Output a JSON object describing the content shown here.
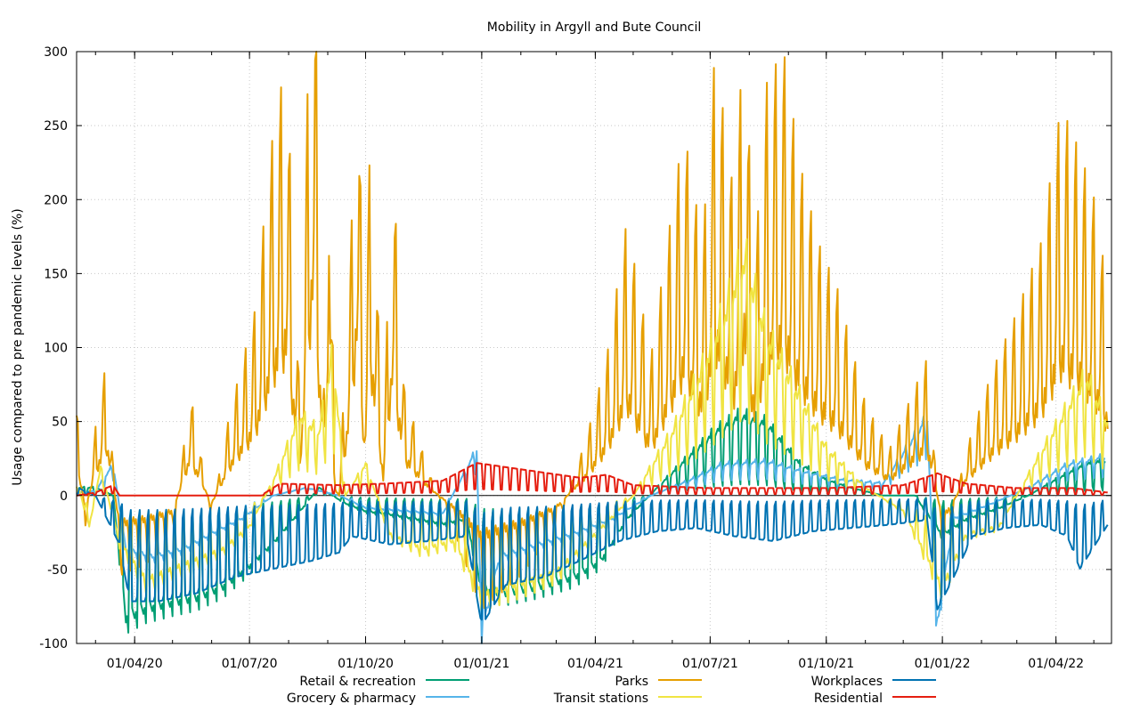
{
  "chart_data": {
    "type": "line",
    "title": "Mobility in Argyll and Bute Council",
    "xlabel": "",
    "ylabel": "Usage compared to pre pandemic levels (%)",
    "ylim": [
      -100,
      300
    ],
    "y_ticks": [
      "300",
      "250",
      "200",
      "150",
      "100",
      "50",
      "0",
      "-50",
      "-100"
    ],
    "x_range": [
      "2020-02-15",
      "2022-05-15"
    ],
    "x_ticks": [
      {
        "date": "2020-04-01",
        "label": "01/04/20"
      },
      {
        "date": "2020-07-01",
        "label": "01/07/20"
      },
      {
        "date": "2020-10-01",
        "label": "01/10/20"
      },
      {
        "date": "2021-01-01",
        "label": "01/01/21"
      },
      {
        "date": "2021-04-01",
        "label": "01/04/21"
      },
      {
        "date": "2021-07-01",
        "label": "01/07/21"
      },
      {
        "date": "2021-10-01",
        "label": "01/10/21"
      },
      {
        "date": "2022-01-01",
        "label": "01/01/22"
      },
      {
        "date": "2022-04-01",
        "label": "01/04/22"
      }
    ],
    "grid": true,
    "legend_position": "bottom",
    "series": [
      {
        "name": "Retail & recreation",
        "color": "#009e73",
        "points": [
          [
            "2020-02-15",
            5
          ],
          [
            "2020-03-01",
            5
          ],
          [
            "2020-03-15",
            0
          ],
          [
            "2020-03-25",
            -78
          ],
          [
            "2020-04-10",
            -72
          ],
          [
            "2020-05-01",
            -68
          ],
          [
            "2020-05-20",
            -65
          ],
          [
            "2020-06-10",
            -58
          ],
          [
            "2020-07-01",
            -45
          ],
          [
            "2020-07-20",
            -30
          ],
          [
            "2020-08-10",
            -10
          ],
          [
            "2020-08-25",
            5
          ],
          [
            "2020-09-15",
            -5
          ],
          [
            "2020-10-01",
            -10
          ],
          [
            "2020-10-20",
            -12
          ],
          [
            "2020-11-10",
            -15
          ],
          [
            "2020-12-01",
            -18
          ],
          [
            "2020-12-20",
            -15
          ],
          [
            "2021-01-01",
            -60
          ],
          [
            "2021-01-20",
            -62
          ],
          [
            "2021-02-15",
            -58
          ],
          [
            "2021-03-15",
            -52
          ],
          [
            "2021-04-05",
            -42
          ],
          [
            "2021-04-26",
            -15
          ],
          [
            "2021-05-20",
            5
          ],
          [
            "2021-06-15",
            25
          ],
          [
            "2021-07-05",
            40
          ],
          [
            "2021-07-25",
            50
          ],
          [
            "2021-08-15",
            45
          ],
          [
            "2021-09-10",
            20
          ],
          [
            "2021-10-01",
            10
          ],
          [
            "2021-10-20",
            5
          ],
          [
            "2021-11-15",
            0
          ],
          [
            "2021-12-10",
            0
          ],
          [
            "2022-01-01",
            -25
          ],
          [
            "2022-01-20",
            -15
          ],
          [
            "2022-02-15",
            -8
          ],
          [
            "2022-03-10",
            0
          ],
          [
            "2022-04-01",
            10
          ],
          [
            "2022-04-25",
            20
          ],
          [
            "2022-05-10",
            22
          ]
        ]
      },
      {
        "name": "Grocery & pharmacy",
        "color": "#56b4e9",
        "points": [
          [
            "2020-02-15",
            2
          ],
          [
            "2020-03-01",
            3
          ],
          [
            "2020-03-15",
            20
          ],
          [
            "2020-03-25",
            -35
          ],
          [
            "2020-04-15",
            -40
          ],
          [
            "2020-05-10",
            -35
          ],
          [
            "2020-06-01",
            -25
          ],
          [
            "2020-06-25",
            -15
          ],
          [
            "2020-07-20",
            0
          ],
          [
            "2020-08-15",
            5
          ],
          [
            "2020-09-10",
            0
          ],
          [
            "2020-10-01",
            -8
          ],
          [
            "2020-11-01",
            -10
          ],
          [
            "2020-12-01",
            -12
          ],
          [
            "2020-12-28",
            30
          ],
          [
            "2021-01-01",
            -90
          ],
          [
            "2021-01-15",
            -40
          ],
          [
            "2021-02-15",
            -32
          ],
          [
            "2021-03-15",
            -25
          ],
          [
            "2021-04-15",
            -15
          ],
          [
            "2021-05-15",
            0
          ],
          [
            "2021-06-15",
            10
          ],
          [
            "2021-07-10",
            20
          ],
          [
            "2021-08-15",
            22
          ],
          [
            "2021-09-15",
            15
          ],
          [
            "2021-10-15",
            10
          ],
          [
            "2021-11-15",
            8
          ],
          [
            "2021-12-20",
            50
          ],
          [
            "2021-12-27",
            -88
          ],
          [
            "2022-01-10",
            -15
          ],
          [
            "2022-02-10",
            -5
          ],
          [
            "2022-03-10",
            5
          ],
          [
            "2022-04-10",
            20
          ],
          [
            "2022-05-10",
            25
          ]
        ]
      },
      {
        "name": "Parks",
        "color": "#e69f00",
        "points": [
          [
            "2020-02-15",
            40
          ],
          [
            "2020-02-22",
            -15
          ],
          [
            "2020-03-01",
            30
          ],
          [
            "2020-03-10",
            60
          ],
          [
            "2020-03-20",
            -35
          ],
          [
            "2020-04-10",
            -30
          ],
          [
            "2020-05-01",
            -20
          ],
          [
            "2020-05-15",
            45
          ],
          [
            "2020-06-01",
            -10
          ],
          [
            "2020-06-15",
            35
          ],
          [
            "2020-07-05",
            80
          ],
          [
            "2020-07-20",
            160
          ],
          [
            "2020-07-30",
            190
          ],
          [
            "2020-08-10",
            40
          ],
          [
            "2020-08-20",
            265
          ],
          [
            "2020-08-30",
            30
          ],
          [
            "2020-09-02",
            270
          ],
          [
            "2020-09-06",
            10
          ],
          [
            "2020-09-10",
            0
          ],
          [
            "2020-09-20",
            120
          ],
          [
            "2020-09-24",
            210
          ],
          [
            "2020-09-30",
            60
          ],
          [
            "2020-10-05",
            165
          ],
          [
            "2020-10-15",
            20
          ],
          [
            "2020-10-22",
            150
          ],
          [
            "2020-11-01",
            45
          ],
          [
            "2020-11-20",
            10
          ],
          [
            "2020-12-10",
            -15
          ],
          [
            "2021-01-01",
            -50
          ],
          [
            "2021-02-01",
            -35
          ],
          [
            "2021-03-01",
            -15
          ],
          [
            "2021-03-25",
            25
          ],
          [
            "2021-04-10",
            60
          ],
          [
            "2021-04-26",
            120
          ],
          [
            "2021-05-15",
            60
          ],
          [
            "2021-06-10",
            160
          ],
          [
            "2021-06-25",
            110
          ],
          [
            "2021-07-05",
            195
          ],
          [
            "2021-07-20",
            130
          ],
          [
            "2021-07-28",
            205
          ],
          [
            "2021-08-05",
            100
          ],
          [
            "2021-08-15",
            180
          ],
          [
            "2021-08-28",
            195
          ],
          [
            "2021-09-10",
            145
          ],
          [
            "2021-09-25",
            110
          ],
          [
            "2021-10-10",
            90
          ],
          [
            "2021-11-01",
            40
          ],
          [
            "2021-11-20",
            20
          ],
          [
            "2021-12-20",
            60
          ],
          [
            "2022-01-01",
            -30
          ],
          [
            "2022-01-20",
            20
          ],
          [
            "2022-02-10",
            55
          ],
          [
            "2022-03-01",
            80
          ],
          [
            "2022-03-20",
            110
          ],
          [
            "2022-04-05",
            170
          ],
          [
            "2022-04-20",
            150
          ],
          [
            "2022-05-01",
            130
          ],
          [
            "2022-05-12",
            90
          ]
        ]
      },
      {
        "name": "Transit stations",
        "color": "#f0e442",
        "points": [
          [
            "2020-02-15",
            10
          ],
          [
            "2020-02-25",
            -20
          ],
          [
            "2020-03-05",
            18
          ],
          [
            "2020-03-20",
            -30
          ],
          [
            "2020-04-10",
            -55
          ],
          [
            "2020-05-10",
            -45
          ],
          [
            "2020-06-10",
            -35
          ],
          [
            "2020-07-01",
            -20
          ],
          [
            "2020-07-20",
            10
          ],
          [
            "2020-08-10",
            50
          ],
          [
            "2020-08-25",
            40
          ],
          [
            "2020-09-05",
            90
          ],
          [
            "2020-09-15",
            0
          ],
          [
            "2020-10-01",
            20
          ],
          [
            "2020-10-20",
            -25
          ],
          [
            "2020-11-15",
            -35
          ],
          [
            "2020-12-10",
            -30
          ],
          [
            "2021-01-01",
            -65
          ],
          [
            "2021-02-01",
            -58
          ],
          [
            "2021-03-01",
            -50
          ],
          [
            "2021-04-01",
            -25
          ],
          [
            "2021-05-01",
            0
          ],
          [
            "2021-06-01",
            40
          ],
          [
            "2021-06-25",
            80
          ],
          [
            "2021-07-15",
            120
          ],
          [
            "2021-07-28",
            150
          ],
          [
            "2021-08-15",
            100
          ],
          [
            "2021-09-05",
            70
          ],
          [
            "2021-10-01",
            30
          ],
          [
            "2021-11-01",
            5
          ],
          [
            "2021-12-01",
            -10
          ],
          [
            "2022-01-01",
            -60
          ],
          [
            "2022-01-20",
            -25
          ],
          [
            "2022-02-15",
            -20
          ],
          [
            "2022-03-15",
            20
          ],
          [
            "2022-04-10",
            55
          ],
          [
            "2022-04-25",
            75
          ],
          [
            "2022-05-12",
            45
          ]
        ]
      },
      {
        "name": "Workplaces",
        "color": "#0072b2",
        "points": [
          [
            "2020-02-15",
            5
          ],
          [
            "2020-03-01",
            0
          ],
          [
            "2020-03-20",
            -30
          ],
          [
            "2020-03-28",
            -65
          ],
          [
            "2020-04-20",
            -65
          ],
          [
            "2020-05-20",
            -60
          ],
          [
            "2020-06-20",
            -50
          ],
          [
            "2020-07-20",
            -45
          ],
          [
            "2020-08-20",
            -40
          ],
          [
            "2020-09-10",
            -35
          ],
          [
            "2020-09-20",
            -25
          ],
          [
            "2020-10-20",
            -30
          ],
          [
            "2020-11-20",
            -28
          ],
          [
            "2020-12-20",
            -25
          ],
          [
            "2021-01-01",
            -80
          ],
          [
            "2021-01-20",
            -55
          ],
          [
            "2021-02-20",
            -50
          ],
          [
            "2021-03-20",
            -40
          ],
          [
            "2021-04-20",
            -28
          ],
          [
            "2021-05-20",
            -22
          ],
          [
            "2021-06-20",
            -20
          ],
          [
            "2021-07-20",
            -25
          ],
          [
            "2021-08-20",
            -28
          ],
          [
            "2021-09-20",
            -22
          ],
          [
            "2021-10-20",
            -20
          ],
          [
            "2021-11-20",
            -18
          ],
          [
            "2021-12-20",
            -15
          ],
          [
            "2021-12-28",
            -70
          ],
          [
            "2022-01-10",
            -50
          ],
          [
            "2022-01-25",
            -25
          ],
          [
            "2022-02-20",
            -20
          ],
          [
            "2022-03-20",
            -18
          ],
          [
            "2022-04-10",
            -25
          ],
          [
            "2022-04-20",
            -45
          ],
          [
            "2022-05-12",
            -18
          ]
        ]
      },
      {
        "name": "Residential",
        "color": "#e51e10",
        "points": [
          [
            "2020-02-15",
            0
          ],
          [
            "2020-03-01",
            2
          ],
          [
            "2020-03-15",
            7
          ],
          [
            "2020-03-20",
            0
          ],
          [
            "2020-07-10",
            0
          ],
          [
            "2020-07-25",
            8
          ],
          [
            "2020-09-10",
            7
          ],
          [
            "2020-10-15",
            8
          ],
          [
            "2020-12-01",
            10
          ],
          [
            "2020-12-28",
            22
          ],
          [
            "2021-02-15",
            16
          ],
          [
            "2021-03-20",
            12
          ],
          [
            "2021-04-10",
            14
          ],
          [
            "2021-05-01",
            7
          ],
          [
            "2021-07-01",
            5
          ],
          [
            "2021-10-01",
            5
          ],
          [
            "2021-12-01",
            7
          ],
          [
            "2021-12-28",
            15
          ],
          [
            "2022-01-20",
            8
          ],
          [
            "2022-03-01",
            5
          ],
          [
            "2022-04-15",
            5
          ],
          [
            "2022-05-12",
            2
          ]
        ]
      }
    ]
  }
}
